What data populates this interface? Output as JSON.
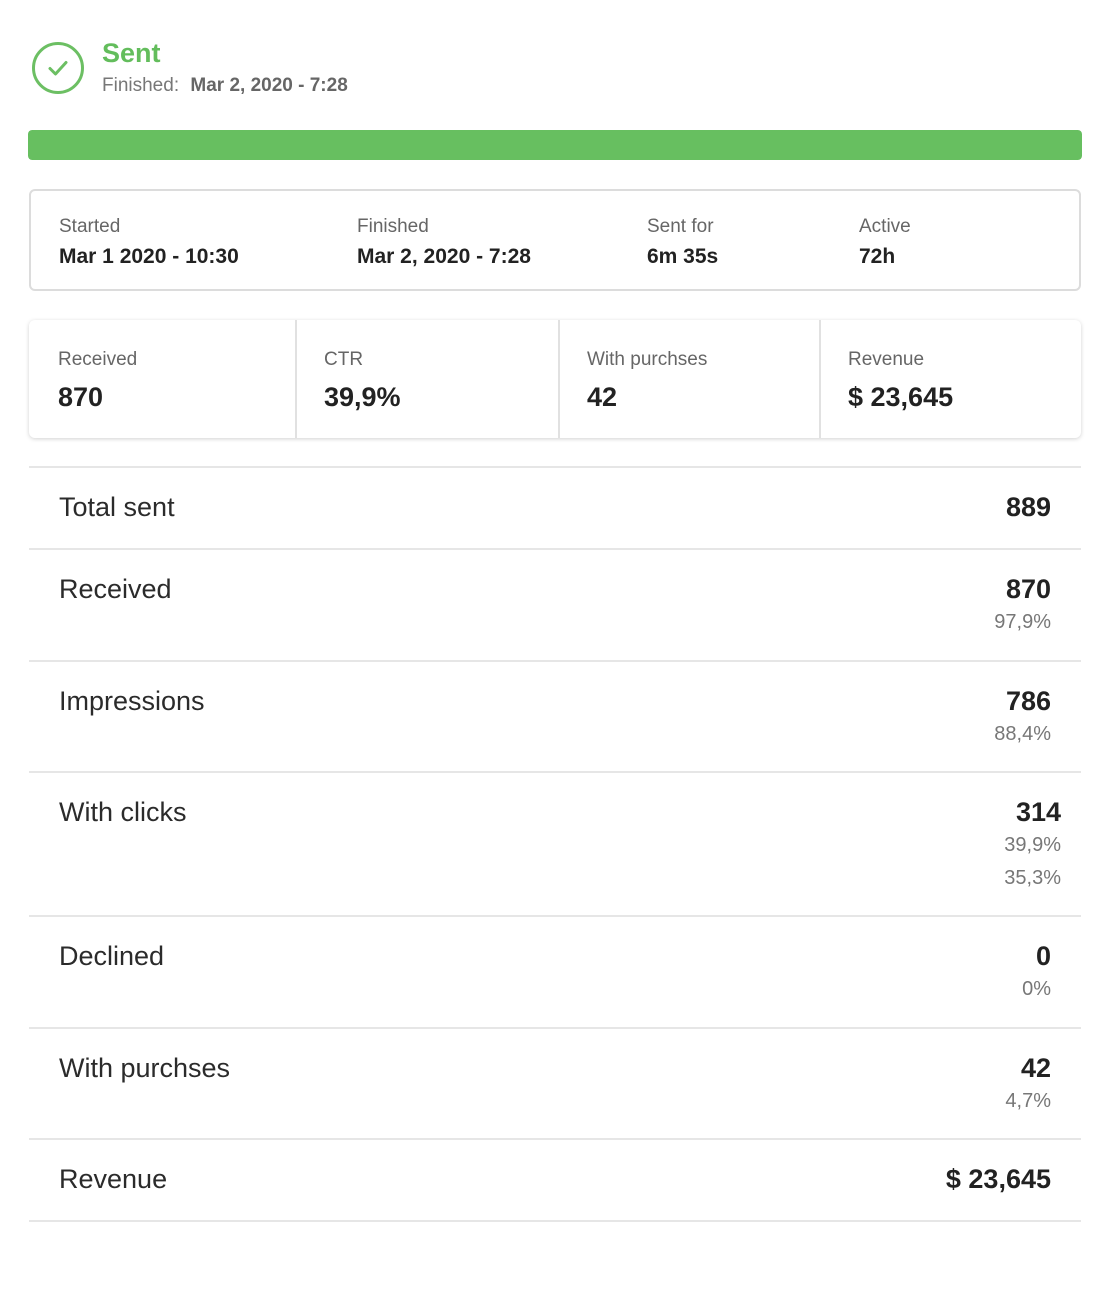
{
  "status": {
    "title": "Sent",
    "finished_label": "Finished:",
    "finished_value": "Mar 2, 2020 - 7:28",
    "accent_color": "#63bd5c",
    "icon": "check-circle-icon"
  },
  "progress": {
    "percent": 100,
    "color": "#67bf60"
  },
  "timing": [
    {
      "label": "Started",
      "value": "Mar 1 2020 - 10:30"
    },
    {
      "label": "Finished",
      "value": "Mar 2, 2020 - 7:28"
    },
    {
      "label": "Sent for",
      "value": "6m 35s"
    },
    {
      "label": "Active",
      "value": "72h"
    }
  ],
  "stats": [
    {
      "label": "Received",
      "value": "870"
    },
    {
      "label": "CTR",
      "value": "39,9%"
    },
    {
      "label": "With purchses",
      "value": "42"
    },
    {
      "label": "Revenue",
      "value": "$ 23,645"
    }
  ],
  "metrics": [
    {
      "label": "Total sent",
      "value": "889",
      "subs": []
    },
    {
      "label": "Received",
      "value": "870",
      "subs": [
        "97,9%"
      ]
    },
    {
      "label": "Impressions",
      "value": "786",
      "subs": [
        "88,4%"
      ]
    },
    {
      "label": "With clicks",
      "value": "314",
      "subs": [
        "39,9%",
        "35,3%"
      ]
    },
    {
      "label": "Declined",
      "value": "0",
      "subs": [
        "0%"
      ]
    },
    {
      "label": "With purchses",
      "value": "42",
      "subs": [
        "4,7%"
      ]
    },
    {
      "label": "Revenue",
      "value": "$ 23,645",
      "subs": []
    }
  ]
}
